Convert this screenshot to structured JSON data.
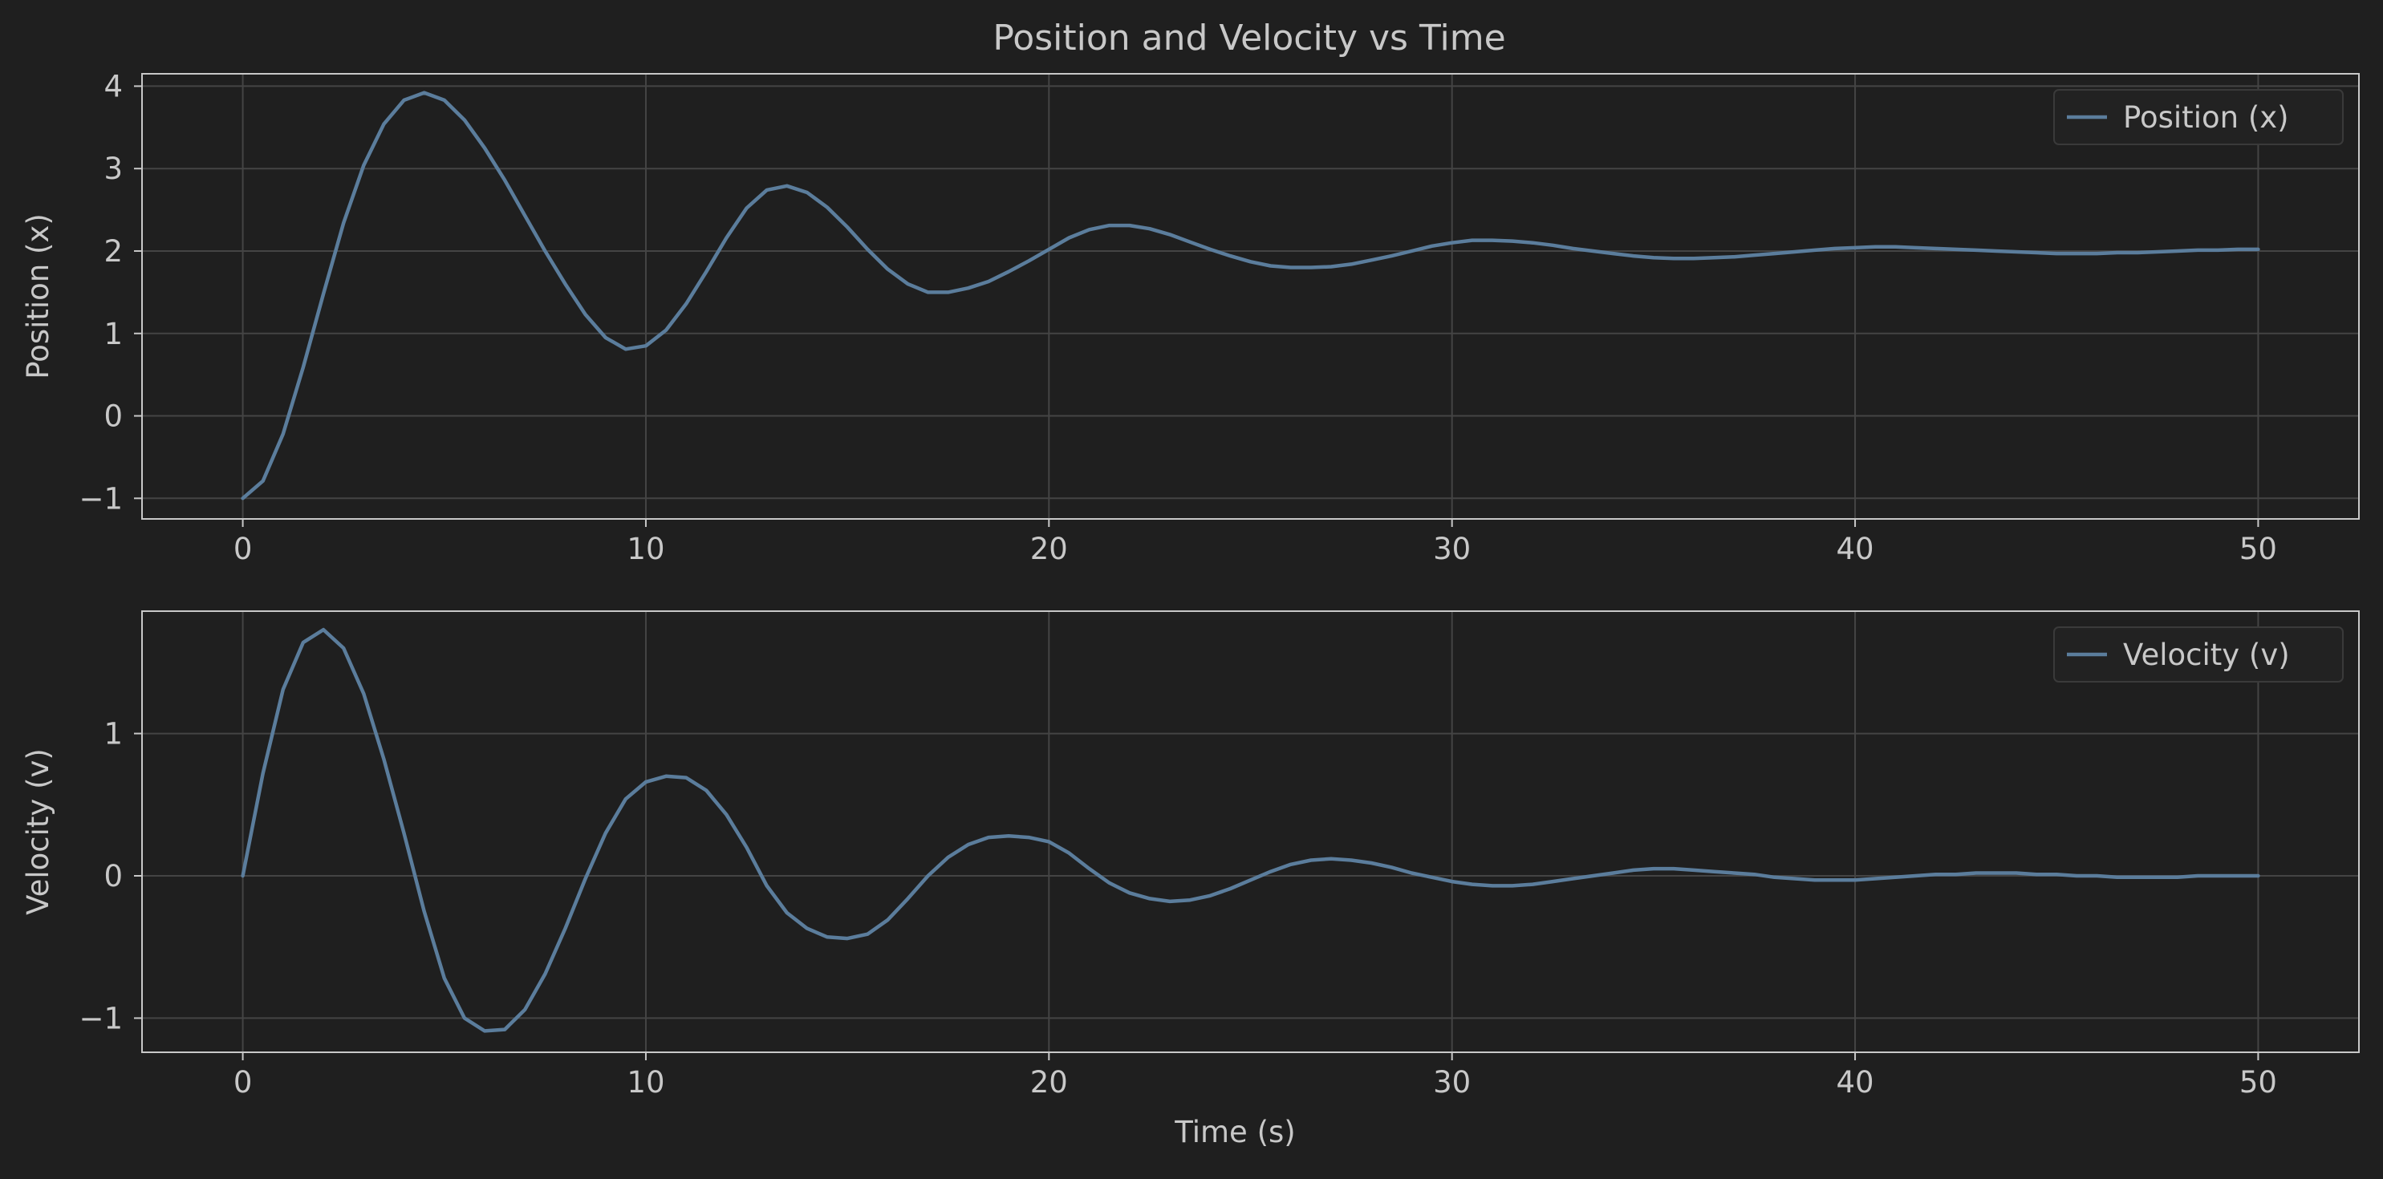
{
  "title": "Position and Velocity vs Time",
  "colors": {
    "background": "#1f1f1f",
    "line": "#5b7d9c",
    "grid": "#444444",
    "spine": "#c8c8c8",
    "text": "#c8c8c8"
  },
  "chart_data": [
    {
      "type": "line",
      "ylabel": "Position (x)",
      "xlabel": "",
      "xlim": [
        -2.5,
        52.5
      ],
      "ylim": [
        -1.25,
        4.15
      ],
      "xticks": [
        "0",
        "10",
        "20",
        "30",
        "40",
        "50"
      ],
      "yticks": [
        "−1",
        "0",
        "1",
        "2",
        "3",
        "4"
      ],
      "grid": true,
      "legend": "top-right",
      "series": [
        {
          "name": "Position (x)",
          "x": [
            0,
            0.5,
            1,
            1.5,
            2,
            2.5,
            3,
            3.5,
            4,
            4.5,
            5,
            5.5,
            6,
            6.5,
            7,
            7.5,
            8,
            8.5,
            9,
            9.5,
            10,
            10.5,
            11,
            11.5,
            12,
            12.5,
            13,
            13.5,
            14,
            14.5,
            15,
            15.5,
            16,
            16.5,
            17,
            17.5,
            18,
            18.5,
            19,
            19.5,
            20,
            20.5,
            21,
            21.5,
            22,
            22.5,
            23,
            23.5,
            24,
            24.5,
            25,
            25.5,
            26,
            26.5,
            27,
            27.5,
            28,
            28.5,
            29,
            29.5,
            30,
            30.5,
            31,
            31.5,
            32,
            32.5,
            33,
            33.5,
            34,
            34.5,
            35,
            35.5,
            36,
            36.5,
            37,
            37.5,
            38,
            38.5,
            39,
            39.5,
            40,
            40.5,
            41,
            41.5,
            42,
            42.5,
            43,
            43.5,
            44,
            44.5,
            45,
            45.5,
            46,
            46.5,
            47,
            47.5,
            48,
            48.5,
            49,
            49.5,
            50
          ],
          "values": [
            -1,
            -0.79,
            -0.22,
            0.59,
            1.48,
            2.34,
            3.04,
            3.54,
            3.83,
            3.92,
            3.83,
            3.59,
            3.25,
            2.86,
            2.43,
            2.0,
            1.6,
            1.23,
            0.95,
            0.81,
            0.85,
            1.04,
            1.36,
            1.75,
            2.16,
            2.52,
            2.74,
            2.79,
            2.71,
            2.53,
            2.29,
            2.02,
            1.78,
            1.6,
            1.5,
            1.5,
            1.55,
            1.63,
            1.75,
            1.88,
            2.02,
            2.16,
            2.26,
            2.31,
            2.31,
            2.27,
            2.2,
            2.11,
            2.02,
            1.94,
            1.87,
            1.82,
            1.8,
            1.8,
            1.81,
            1.84,
            1.89,
            1.94,
            2.0,
            2.06,
            2.1,
            2.13,
            2.13,
            2.12,
            2.1,
            2.07,
            2.03,
            2.0,
            1.97,
            1.94,
            1.92,
            1.91,
            1.91,
            1.92,
            1.93,
            1.95,
            1.97,
            1.99,
            2.01,
            2.03,
            2.04,
            2.05,
            2.05,
            2.04,
            2.03,
            2.02,
            2.01,
            2.0,
            1.99,
            1.98,
            1.97,
            1.97,
            1.97,
            1.98,
            1.98,
            1.99,
            2.0,
            2.01,
            2.01,
            2.02,
            2.02
          ]
        }
      ]
    },
    {
      "type": "line",
      "ylabel": "Velocity (v)",
      "xlabel": "Time (s)",
      "xlim": [
        -2.5,
        52.5
      ],
      "ylim": [
        -1.24,
        1.86
      ],
      "xticks": [
        "0",
        "10",
        "20",
        "30",
        "40",
        "50"
      ],
      "yticks": [
        "−1",
        "0",
        "1"
      ],
      "grid": true,
      "legend": "top-right",
      "series": [
        {
          "name": "Velocity (v)",
          "x": [
            0,
            0.5,
            1,
            1.5,
            2,
            2.5,
            3,
            3.5,
            4,
            4.5,
            5,
            5.5,
            6,
            6.5,
            7,
            7.5,
            8,
            8.5,
            9,
            9.5,
            10,
            10.5,
            11,
            11.5,
            12,
            12.5,
            13,
            13.5,
            14,
            14.5,
            15,
            15.5,
            16,
            16.5,
            17,
            17.5,
            18,
            18.5,
            19,
            19.5,
            20,
            20.5,
            21,
            21.5,
            22,
            22.5,
            23,
            23.5,
            24,
            24.5,
            25,
            25.5,
            26,
            26.5,
            27,
            27.5,
            28,
            28.5,
            29,
            29.5,
            30,
            30.5,
            31,
            31.5,
            32,
            32.5,
            33,
            33.5,
            34,
            34.5,
            35,
            35.5,
            36,
            36.5,
            37,
            37.5,
            38,
            38.5,
            39,
            39.5,
            40,
            40.5,
            41,
            41.5,
            42,
            42.5,
            43,
            43.5,
            44,
            44.5,
            45,
            45.5,
            46,
            46.5,
            47,
            47.5,
            48,
            48.5,
            49,
            49.5,
            50
          ],
          "values": [
            0,
            0.72,
            1.31,
            1.64,
            1.73,
            1.6,
            1.28,
            0.82,
            0.3,
            -0.25,
            -0.72,
            -1.0,
            -1.09,
            -1.08,
            -0.94,
            -0.69,
            -0.37,
            -0.02,
            0.3,
            0.54,
            0.66,
            0.7,
            0.69,
            0.6,
            0.43,
            0.2,
            -0.07,
            -0.26,
            -0.37,
            -0.43,
            -0.44,
            -0.41,
            -0.31,
            -0.16,
            0.0,
            0.13,
            0.22,
            0.27,
            0.28,
            0.27,
            0.24,
            0.16,
            0.05,
            -0.05,
            -0.12,
            -0.16,
            -0.18,
            -0.17,
            -0.14,
            -0.09,
            -0.03,
            0.03,
            0.08,
            0.11,
            0.12,
            0.11,
            0.09,
            0.06,
            0.02,
            -0.01,
            -0.04,
            -0.06,
            -0.07,
            -0.07,
            -0.06,
            -0.04,
            -0.02,
            0.0,
            0.02,
            0.04,
            0.05,
            0.05,
            0.04,
            0.03,
            0.02,
            0.01,
            -0.01,
            -0.02,
            -0.03,
            -0.03,
            -0.03,
            -0.02,
            -0.01,
            0.0,
            0.01,
            0.01,
            0.02,
            0.02,
            0.02,
            0.01,
            0.01,
            0.0,
            0.0,
            -0.01,
            -0.01,
            -0.01,
            -0.01,
            0.0,
            0.0,
            0.0,
            0.0
          ]
        }
      ]
    }
  ]
}
